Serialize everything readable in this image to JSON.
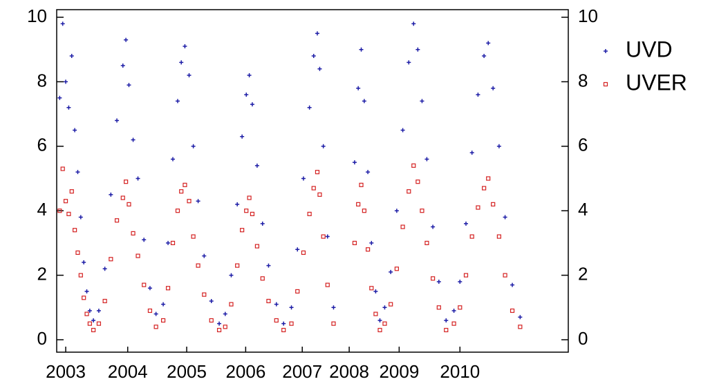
{
  "chart_data": {
    "type": "scatter",
    "xlim": [
      2002.85,
      2011.35
    ],
    "xticks": [
      {
        "value": 2003.0,
        "label": "2003"
      },
      {
        "value": 2004.03,
        "label": "2004"
      },
      {
        "value": 2005.01,
        "label": "2005"
      },
      {
        "value": 2005.99,
        "label": "2006"
      },
      {
        "value": 2006.93,
        "label": "2007"
      },
      {
        "value": 2007.71,
        "label": "2008"
      },
      {
        "value": 2008.54,
        "label": "2009"
      },
      {
        "value": 2009.55,
        "label": "2010"
      }
    ],
    "ylim": [
      0,
      10
    ],
    "yticks": [
      0,
      2,
      4,
      6,
      8,
      10
    ],
    "y2lim": [
      0,
      10
    ],
    "y2ticks": [
      0,
      2,
      4,
      6,
      8,
      10
    ],
    "legend": "right",
    "series": [
      {
        "name": "UVD",
        "color": "#1c1ca6",
        "marker": "plus",
        "x": [
          2002.9,
          2002.95,
          2003.0,
          2003.05,
          2003.1,
          2003.15,
          2003.2,
          2003.25,
          2003.3,
          2003.35,
          2003.4,
          2003.46,
          2003.55,
          2003.65,
          2003.75,
          2003.85,
          2003.95,
          2004.0,
          2004.05,
          2004.12,
          2004.2,
          2004.3,
          2004.4,
          2004.5,
          2004.62,
          2004.7,
          2004.78,
          2004.86,
          2004.92,
          2004.98,
          2005.05,
          2005.12,
          2005.2,
          2005.3,
          2005.42,
          2005.55,
          2005.65,
          2005.75,
          2005.85,
          2005.93,
          2006.0,
          2006.05,
          2006.1,
          2006.18,
          2006.27,
          2006.37,
          2006.5,
          2006.62,
          2006.75,
          2006.85,
          2006.95,
          2007.05,
          2007.12,
          2007.18,
          2007.22,
          2007.28,
          2007.35,
          2007.45,
          2007.8,
          2007.86,
          2007.91,
          2007.96,
          2008.02,
          2008.08,
          2008.15,
          2008.22,
          2008.3,
          2008.4,
          2008.5,
          2008.6,
          2008.7,
          2008.78,
          2008.85,
          2008.92,
          2009.0,
          2009.1,
          2009.2,
          2009.32,
          2009.45,
          2009.55,
          2009.65,
          2009.75,
          2009.85,
          2009.95,
          2010.02,
          2010.1,
          2010.2,
          2010.3,
          2010.42,
          2010.55
        ],
        "values": [
          7.5,
          9.8,
          8.0,
          7.2,
          8.8,
          6.5,
          5.2,
          3.8,
          2.4,
          1.5,
          0.9,
          0.6,
          0.9,
          2.2,
          4.5,
          6.8,
          8.5,
          9.3,
          7.9,
          6.2,
          5.0,
          3.1,
          1.6,
          0.8,
          1.1,
          3.0,
          5.6,
          7.4,
          8.6,
          9.1,
          8.2,
          6.0,
          4.3,
          2.6,
          1.2,
          0.5,
          0.8,
          2.0,
          4.2,
          6.3,
          7.6,
          8.2,
          7.3,
          5.4,
          3.6,
          2.3,
          1.1,
          0.5,
          1.0,
          2.8,
          5.0,
          7.2,
          8.8,
          9.5,
          8.4,
          6.0,
          3.2,
          1.0,
          5.5,
          7.8,
          9.0,
          7.4,
          5.2,
          3.0,
          1.5,
          0.6,
          1.0,
          2.1,
          4.0,
          6.5,
          8.6,
          9.8,
          9.0,
          7.4,
          5.6,
          3.5,
          1.8,
          0.6,
          0.9,
          1.8,
          3.6,
          5.8,
          7.6,
          8.8,
          9.2,
          7.8,
          6.0,
          3.8,
          1.7,
          0.7
        ]
      },
      {
        "name": "UVER",
        "color": "#d42020",
        "marker": "square",
        "x": [
          2002.9,
          2002.95,
          2003.0,
          2003.05,
          2003.1,
          2003.15,
          2003.2,
          2003.25,
          2003.3,
          2003.35,
          2003.4,
          2003.46,
          2003.55,
          2003.65,
          2003.75,
          2003.85,
          2003.95,
          2004.0,
          2004.05,
          2004.12,
          2004.2,
          2004.3,
          2004.4,
          2004.5,
          2004.62,
          2004.7,
          2004.78,
          2004.86,
          2004.92,
          2004.98,
          2005.05,
          2005.12,
          2005.2,
          2005.3,
          2005.42,
          2005.55,
          2005.65,
          2005.75,
          2005.85,
          2005.93,
          2006.0,
          2006.05,
          2006.1,
          2006.18,
          2006.27,
          2006.37,
          2006.5,
          2006.62,
          2006.75,
          2006.85,
          2006.95,
          2007.05,
          2007.12,
          2007.18,
          2007.22,
          2007.28,
          2007.35,
          2007.45,
          2007.8,
          2007.86,
          2007.91,
          2007.96,
          2008.02,
          2008.08,
          2008.15,
          2008.22,
          2008.3,
          2008.4,
          2008.5,
          2008.6,
          2008.7,
          2008.78,
          2008.85,
          2008.92,
          2009.0,
          2009.1,
          2009.2,
          2009.32,
          2009.45,
          2009.55,
          2009.65,
          2009.75,
          2009.85,
          2009.95,
          2010.02,
          2010.1,
          2010.2,
          2010.3,
          2010.42,
          2010.55
        ],
        "values": [
          4.0,
          5.3,
          4.3,
          3.9,
          4.6,
          3.4,
          2.7,
          2.0,
          1.3,
          0.8,
          0.5,
          0.3,
          0.5,
          1.2,
          2.5,
          3.7,
          4.4,
          4.9,
          4.2,
          3.3,
          2.6,
          1.7,
          0.9,
          0.4,
          0.6,
          1.6,
          3.0,
          4.0,
          4.6,
          4.8,
          4.3,
          3.2,
          2.3,
          1.4,
          0.6,
          0.3,
          0.4,
          1.1,
          2.3,
          3.4,
          4.0,
          4.4,
          3.9,
          2.9,
          1.9,
          1.2,
          0.6,
          0.3,
          0.5,
          1.5,
          2.7,
          3.9,
          4.7,
          5.2,
          4.5,
          3.2,
          1.7,
          0.5,
          3.0,
          4.2,
          4.8,
          4.0,
          2.8,
          1.6,
          0.8,
          0.3,
          0.5,
          1.1,
          2.2,
          3.5,
          4.6,
          5.4,
          4.9,
          4.0,
          3.0,
          1.9,
          1.0,
          0.3,
          0.5,
          1.0,
          2.0,
          3.2,
          4.1,
          4.7,
          5.0,
          4.2,
          3.2,
          2.0,
          0.9,
          0.4
        ]
      }
    ]
  }
}
